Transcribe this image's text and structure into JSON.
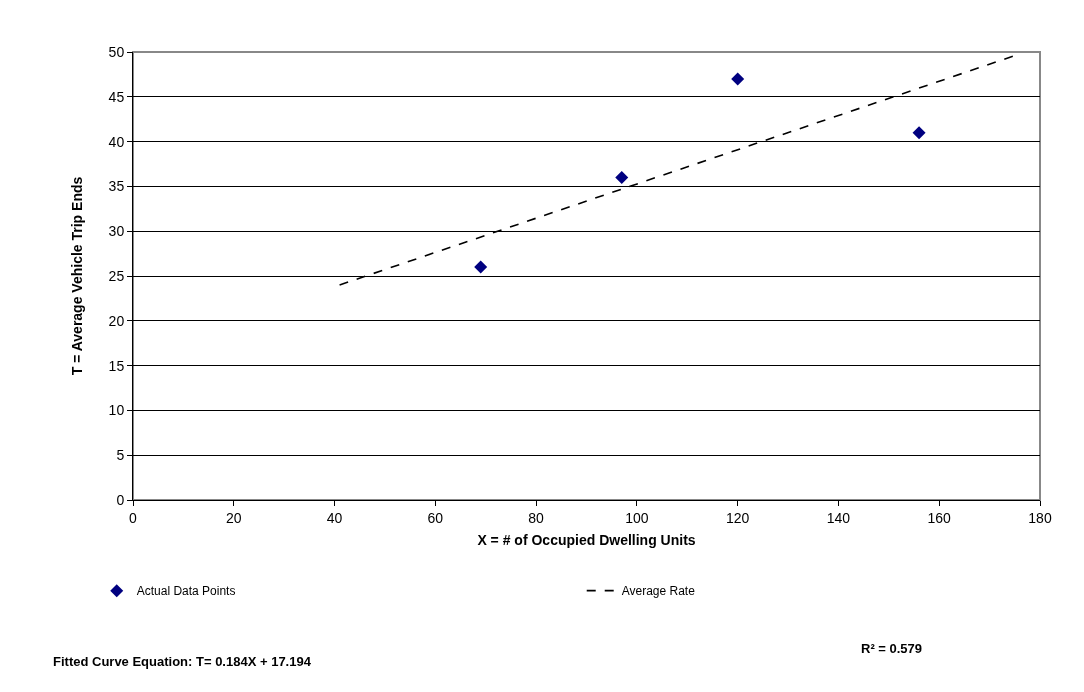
{
  "chart_data": {
    "type": "scatter",
    "xlabel": "X = # of Occupied Dwelling Units",
    "ylabel": "T = Average Vehicle Trip Ends",
    "x": [
      69,
      97,
      120,
      156
    ],
    "series": [
      {
        "name": "Actual Data Points",
        "type": "scatter",
        "color": "#000080",
        "marker": "diamond",
        "values": [
          26,
          36,
          47,
          41
        ]
      },
      {
        "name": "Average Rate",
        "type": "line",
        "color": "#000000",
        "line_style": "dashed",
        "marker": "none",
        "x": [
          41,
          175
        ],
        "values": [
          24,
          49.6
        ]
      }
    ],
    "xlim": [
      0,
      180
    ],
    "xticks": [
      0,
      20,
      40,
      60,
      80,
      100,
      120,
      140,
      160,
      180
    ],
    "ylim": [
      0,
      50
    ],
    "yticks": [
      0,
      5,
      10,
      15,
      20,
      25,
      30,
      35,
      40,
      45,
      50
    ],
    "grid": "y",
    "legend": "bottom",
    "annotations": [
      "Fitted Curve Equation: T= 0.184X + 17.194",
      "R² = 0.579"
    ]
  }
}
